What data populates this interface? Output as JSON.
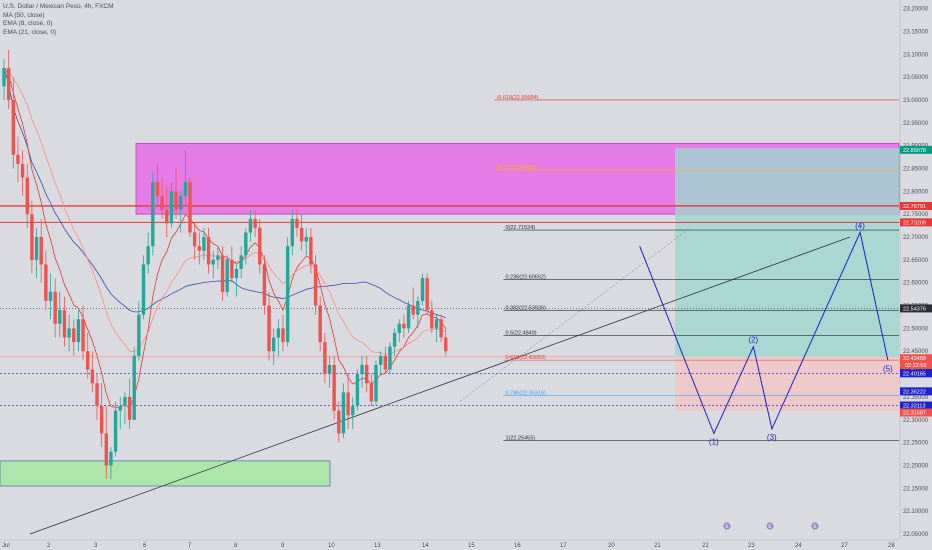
{
  "header": {
    "title": "U.S. Dollar / Mexican Peso, 4h, FXCM",
    "indicators": [
      "MA (50, close)",
      "EMA (8, close, 0)",
      "EMA (21, close, 0)"
    ]
  },
  "colors": {
    "background": "#d9dbe0",
    "bull": "#26a69a",
    "bear": "#ef5350",
    "ma50": "#3b4fa8",
    "ema8": "#e53935",
    "ema21": "#ff8a80",
    "wave": "#1e22c8",
    "supply_zone": "#e66be6",
    "demand_zone": "#a6e6a0",
    "target_zone": "#9fd6cf",
    "stop_zone": "#f2c4c4"
  },
  "chart_data": {
    "type": "candlestick",
    "title": "U.S. Dollar / Mexican Peso, 4h, FXCM",
    "x_tick_labels": [
      "Jul",
      "2",
      "3",
      "6",
      "7",
      "8",
      "9",
      "10",
      "13",
      "14",
      "15",
      "16",
      "17",
      "20",
      "21",
      "22",
      "23",
      "24",
      "27",
      "28"
    ],
    "y_tick_labels": [
      "23.20000",
      "23.15000",
      "23.10000",
      "23.05000",
      "23.00000",
      "22.95000",
      "22.90000",
      "22.85000",
      "22.80000",
      "22.75000",
      "22.70000",
      "22.65000",
      "22.60000",
      "22.55000",
      "22.50000",
      "22.45000",
      "22.40000",
      "22.35000",
      "22.30000",
      "22.25000",
      "22.20000",
      "22.15000",
      "22.10000",
      "22.05000"
    ],
    "ylim": [
      22.05,
      23.2
    ],
    "grid": false,
    "candles": [
      [
        23.03,
        23.09,
        23.0,
        23.07
      ],
      [
        23.07,
        23.11,
        22.98,
        23.0
      ],
      [
        23.0,
        23.05,
        22.85,
        22.88
      ],
      [
        22.88,
        22.92,
        22.82,
        22.86
      ],
      [
        22.86,
        22.89,
        22.79,
        22.83
      ],
      [
        22.83,
        22.86,
        22.72,
        22.75
      ],
      [
        22.75,
        22.78,
        22.62,
        22.65
      ],
      [
        22.65,
        22.72,
        22.61,
        22.7
      ],
      [
        22.7,
        22.74,
        22.6,
        22.64
      ],
      [
        22.64,
        22.67,
        22.54,
        22.56
      ],
      [
        22.56,
        22.62,
        22.52,
        22.58
      ],
      [
        22.58,
        22.61,
        22.48,
        22.51
      ],
      [
        22.51,
        22.58,
        22.48,
        22.54
      ],
      [
        22.54,
        22.57,
        22.46,
        22.48
      ],
      [
        22.48,
        22.53,
        22.45,
        22.5
      ],
      [
        22.5,
        22.52,
        22.44,
        22.47
      ],
      [
        22.47,
        22.54,
        22.45,
        22.52
      ],
      [
        22.52,
        22.55,
        22.43,
        22.45
      ],
      [
        22.45,
        22.49,
        22.39,
        22.41
      ],
      [
        22.41,
        22.45,
        22.36,
        22.38
      ],
      [
        22.38,
        22.4,
        22.3,
        22.33
      ],
      [
        22.33,
        22.38,
        22.24,
        22.27
      ],
      [
        22.27,
        22.33,
        22.17,
        22.2
      ],
      [
        22.2,
        22.24,
        22.17,
        22.23
      ],
      [
        22.23,
        22.34,
        22.22,
        22.32
      ],
      [
        22.32,
        22.35,
        22.28,
        22.33
      ],
      [
        22.33,
        22.36,
        22.29,
        22.35
      ],
      [
        22.35,
        22.39,
        22.28,
        22.3
      ],
      [
        22.3,
        22.46,
        22.3,
        22.44
      ],
      [
        22.44,
        22.56,
        22.43,
        22.53
      ],
      [
        22.53,
        22.66,
        22.52,
        22.64
      ],
      [
        22.64,
        22.71,
        22.62,
        22.68
      ],
      [
        22.68,
        22.84,
        22.66,
        22.82
      ],
      [
        22.82,
        22.86,
        22.77,
        22.79
      ],
      [
        22.79,
        22.83,
        22.74,
        22.76
      ],
      [
        22.76,
        22.81,
        22.7,
        22.73
      ],
      [
        22.73,
        22.82,
        22.72,
        22.8
      ],
      [
        22.8,
        22.85,
        22.74,
        22.76
      ],
      [
        22.76,
        22.8,
        22.71,
        22.79
      ],
      [
        22.79,
        22.89,
        22.77,
        22.82
      ],
      [
        22.82,
        22.83,
        22.7,
        22.71
      ],
      [
        22.71,
        22.73,
        22.65,
        22.68
      ],
      [
        22.68,
        22.71,
        22.64,
        22.67
      ],
      [
        22.67,
        22.72,
        22.65,
        22.7
      ],
      [
        22.7,
        22.72,
        22.62,
        22.64
      ],
      [
        22.64,
        22.67,
        22.61,
        22.65
      ],
      [
        22.65,
        22.68,
        22.63,
        22.66
      ],
      [
        22.66,
        22.68,
        22.56,
        22.58
      ],
      [
        22.58,
        22.66,
        22.57,
        22.65
      ],
      [
        22.65,
        22.68,
        22.6,
        22.61
      ],
      [
        22.61,
        22.64,
        22.57,
        22.63
      ],
      [
        22.63,
        22.68,
        22.61,
        22.66
      ],
      [
        22.66,
        22.72,
        22.64,
        22.71
      ],
      [
        22.71,
        22.76,
        22.69,
        22.74
      ],
      [
        22.74,
        22.76,
        22.7,
        22.72
      ],
      [
        22.72,
        22.74,
        22.62,
        22.64
      ],
      [
        22.64,
        22.66,
        22.53,
        22.55
      ],
      [
        22.55,
        22.58,
        22.43,
        22.45
      ],
      [
        22.45,
        22.5,
        22.42,
        22.48
      ],
      [
        22.48,
        22.52,
        22.44,
        22.5
      ],
      [
        22.5,
        22.53,
        22.45,
        22.47
      ],
      [
        22.47,
        22.7,
        22.46,
        22.68
      ],
      [
        22.68,
        22.76,
        22.66,
        22.74
      ],
      [
        22.74,
        22.76,
        22.7,
        22.72
      ],
      [
        22.72,
        22.75,
        22.67,
        22.69
      ],
      [
        22.69,
        22.72,
        22.66,
        22.7
      ],
      [
        22.7,
        22.72,
        22.62,
        22.64
      ],
      [
        22.64,
        22.66,
        22.53,
        22.55
      ],
      [
        22.55,
        22.57,
        22.45,
        22.47
      ],
      [
        22.47,
        22.49,
        22.38,
        22.4
      ],
      [
        22.4,
        22.44,
        22.37,
        22.42
      ],
      [
        22.42,
        22.44,
        22.3,
        22.32
      ],
      [
        22.32,
        22.34,
        22.25,
        22.27
      ],
      [
        22.27,
        22.38,
        22.26,
        22.36
      ],
      [
        22.36,
        22.4,
        22.28,
        22.31
      ],
      [
        22.31,
        22.35,
        22.28,
        22.33
      ],
      [
        22.33,
        22.41,
        22.32,
        22.4
      ],
      [
        22.4,
        22.44,
        22.37,
        22.42
      ],
      [
        22.42,
        22.44,
        22.36,
        22.38
      ],
      [
        22.38,
        22.4,
        22.33,
        22.34
      ],
      [
        22.34,
        22.43,
        22.33,
        22.42
      ],
      [
        22.42,
        22.45,
        22.4,
        22.44
      ],
      [
        22.44,
        22.46,
        22.4,
        22.41
      ],
      [
        22.41,
        22.47,
        22.4,
        22.46
      ],
      [
        22.46,
        22.5,
        22.44,
        22.49
      ],
      [
        22.49,
        22.52,
        22.47,
        22.51
      ],
      [
        22.51,
        22.53,
        22.48,
        22.5
      ],
      [
        22.5,
        22.56,
        22.49,
        22.55
      ],
      [
        22.55,
        22.59,
        22.52,
        22.53
      ],
      [
        22.53,
        22.57,
        22.5,
        22.56
      ],
      [
        22.56,
        22.62,
        22.55,
        22.61
      ],
      [
        22.61,
        22.62,
        22.53,
        22.54
      ],
      [
        22.54,
        22.56,
        22.49,
        22.5
      ],
      [
        22.5,
        22.53,
        22.47,
        22.52
      ],
      [
        22.52,
        22.53,
        22.47,
        22.48
      ],
      [
        22.48,
        22.5,
        22.44,
        22.45
      ]
    ],
    "price_tags": [
      {
        "value": 22.89078,
        "label": "22.89078",
        "color": "#089981"
      },
      {
        "value": 22.76791,
        "label": "22.76791",
        "color": "#e53935"
      },
      {
        "value": 22.73209,
        "label": "22.73209",
        "color": "#e53935"
      },
      {
        "value": 22.54376,
        "label": "22.54376",
        "color": "#2a2e39"
      },
      {
        "value": 22.43468,
        "label": "22.43468",
        "color": "#ef5350"
      },
      {
        "value": 22.41233,
        "label": "22.41233",
        "color": "#2a2e39"
      },
      {
        "value": 22.40165,
        "label": "22.40165",
        "color": "#1e22c8"
      },
      {
        "value": 22.36222,
        "label": "22.36222",
        "color": "#1e22c8"
      },
      {
        "value": 22.33113,
        "label": "22.33113",
        "color": "#1e22c8"
      },
      {
        "value": 22.31587,
        "label": "22.31587",
        "color": "#ef5350"
      }
    ],
    "countdown": {
      "value": 22.42,
      "label": "02:22:59"
    },
    "fib_levels": [
      {
        "value": 22.99994,
        "label": "-0.618(22.99994)",
        "color": "#e53935",
        "x_start": 0.55
      },
      {
        "value": 22.84655,
        "label": "-0.27(22.84655)",
        "color": "#ffb300",
        "x_start": 0.55
      },
      {
        "value": 22.71524,
        "label": "0(22.71524)",
        "color": "#2a2e39",
        "x_start": 0.56
      },
      {
        "value": 22.60652,
        "label": "0.236(22.60652)",
        "color": "#2a2e39",
        "x_start": 0.56
      },
      {
        "value": 22.53926,
        "label": "0.382(22.53926)",
        "color": "#2a2e39",
        "x_start": 0.56
      },
      {
        "value": 22.4849,
        "label": "0.5(22.4849)",
        "color": "#2a2e39",
        "x_start": 0.56
      },
      {
        "value": 22.43053,
        "label": "0.618(22.43053)",
        "color": "#e53935",
        "x_start": 0.56
      },
      {
        "value": 22.35319,
        "label": "0.786(22.35319)",
        "color": "#42a5f5",
        "x_start": 0.56
      },
      {
        "value": 22.25455,
        "label": "1(22.25455)",
        "color": "#2a2e39",
        "x_start": 0.56
      }
    ],
    "waves": [
      {
        "label": "(1)",
        "x": 15.3,
        "y": 22.27
      },
      {
        "label": "(2)",
        "x": 16.15,
        "y": 22.46
      },
      {
        "label": "(3)",
        "x": 16.55,
        "y": 22.28
      },
      {
        "label": "(4)",
        "x": 18.45,
        "y": 22.71
      },
      {
        "label": "(5)",
        "x": 19.05,
        "y": 22.43
      }
    ],
    "wave_path_start": {
      "x": 13.7,
      "y": 22.68
    }
  },
  "time_flags": [
    "E",
    "E",
    "E"
  ]
}
